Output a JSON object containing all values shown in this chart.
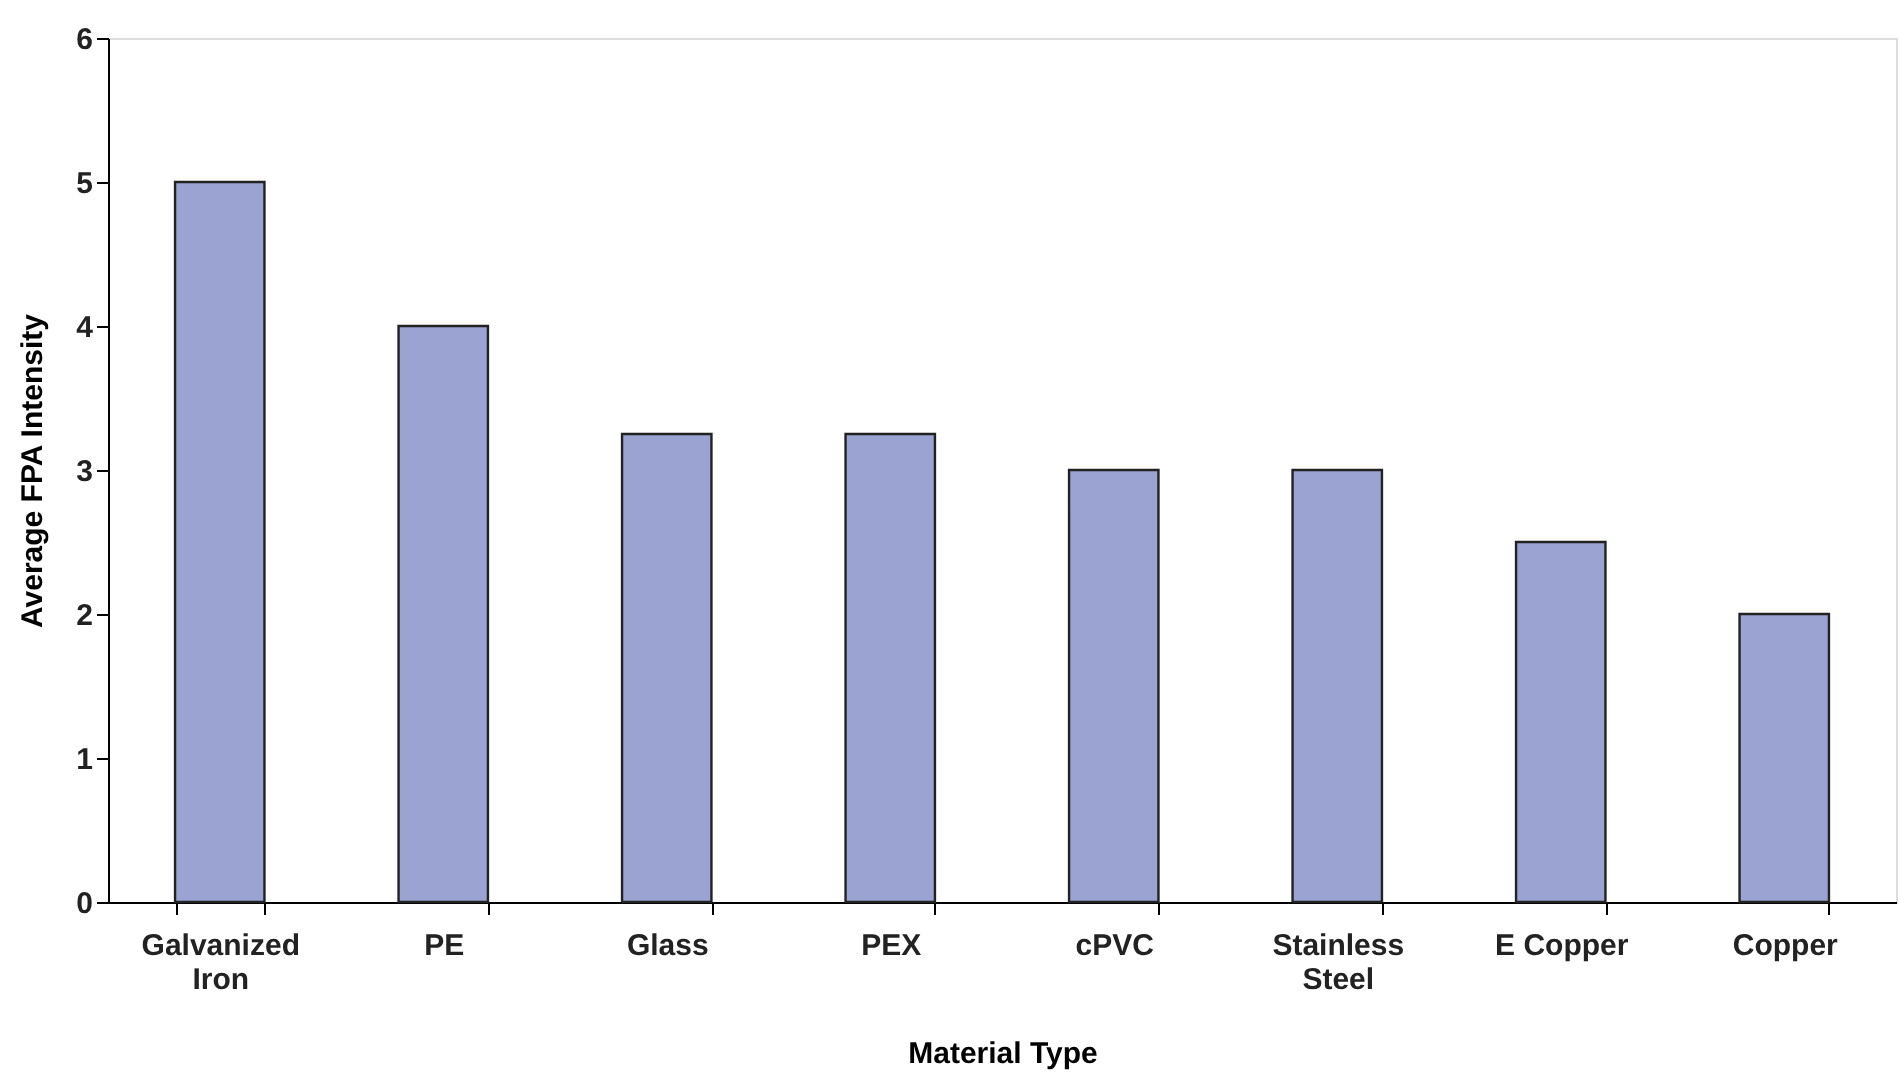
{
  "chart_data": {
    "type": "bar",
    "xlabel": "Material Type",
    "ylabel": "Average FPA Intensity",
    "categories": [
      "Galvanized Iron",
      "PE",
      "Glass",
      "PEX",
      "cPVC",
      "Stainless Steel",
      "E Copper",
      "Copper"
    ],
    "values": [
      5,
      4,
      3.25,
      3.25,
      3,
      3,
      2.5,
      2
    ],
    "color": "#9aa3d1",
    "ylim": [
      0,
      6
    ],
    "yticks": [
      0,
      1,
      2,
      3,
      4,
      5,
      6
    ],
    "grid": false
  }
}
